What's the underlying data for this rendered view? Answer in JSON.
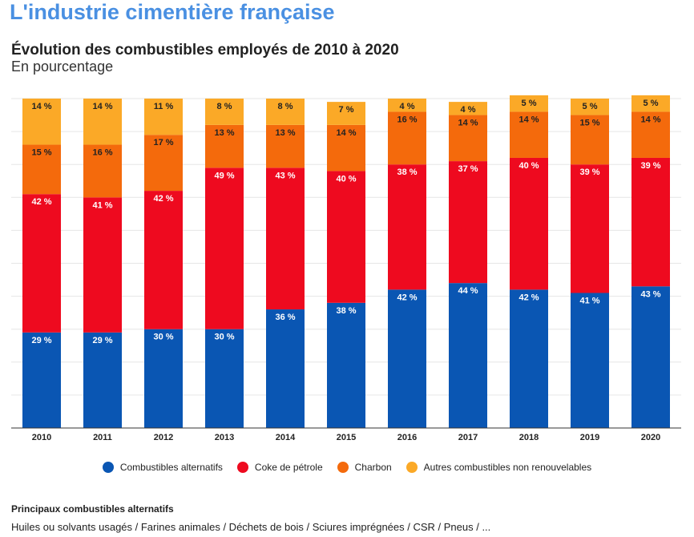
{
  "header": {
    "title": "L'industrie cimentière française"
  },
  "chart_data": {
    "type": "bar",
    "stacked": true,
    "title": "Évolution des combustibles employés de 2010 à 2020",
    "subtitle": "En pourcentage",
    "categories": [
      "2010",
      "2011",
      "2012",
      "2013",
      "2014",
      "2015",
      "2016",
      "2017",
      "2018",
      "2019",
      "2020"
    ],
    "series": [
      {
        "name": "Combustibles alternatifs",
        "color": "#0a56b3",
        "values": [
          29,
          29,
          30,
          30,
          36,
          38,
          42,
          44,
          42,
          41,
          43
        ]
      },
      {
        "name": "Coke de pétrole",
        "color": "#ee0a1f",
        "values": [
          42,
          41,
          42,
          49,
          43,
          40,
          38,
          37,
          40,
          39,
          39
        ]
      },
      {
        "name": "Charbon",
        "color": "#f46a0c",
        "values": [
          15,
          16,
          17,
          13,
          13,
          14,
          16,
          14,
          14,
          15,
          14
        ]
      },
      {
        "name": "Autres combustibles non renouvelables",
        "color": "#fba927",
        "values": [
          14,
          14,
          11,
          8,
          8,
          7,
          4,
          4,
          5,
          5,
          5
        ]
      }
    ],
    "value_suffix": " %",
    "ylim": [
      0,
      100
    ],
    "grid": true,
    "legend_position": "bottom"
  },
  "footer": {
    "title": "Principaux combustibles alternatifs",
    "text": "Huiles ou solvants usagés / Farines animales / Déchets de bois / Sciures imprégnées / CSR / Pneus / ..."
  }
}
